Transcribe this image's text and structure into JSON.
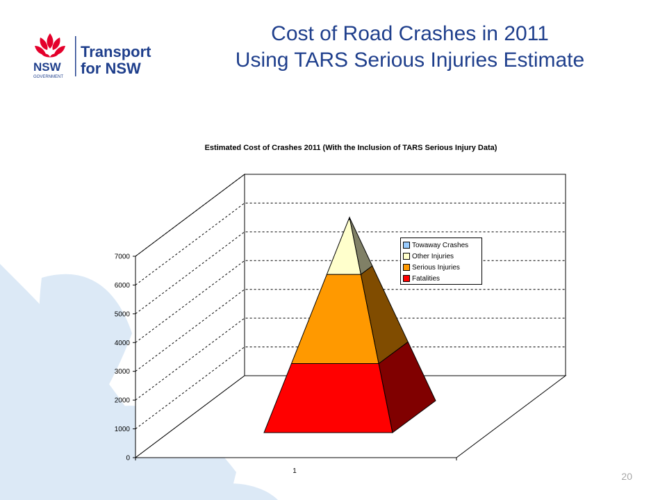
{
  "slide": {
    "title_line1": "Cost of Road Crashes in 2011",
    "title_line2": "Using TARS Serious Injuries Estimate",
    "page_number": "20"
  },
  "logo": {
    "org": "NSW",
    "org_sub": "GOVERNMENT",
    "agency_line1": "Transport",
    "agency_line2": "for NSW",
    "accent": "#e4002b",
    "brand": "#1f3f8c"
  },
  "chart_data": {
    "type": "pyramid",
    "title": "Estimated Cost of Crashes 2011 (With the Inclusion of TARS Serious Injury Data)",
    "categories": [
      "1"
    ],
    "ylim": [
      0,
      7000
    ],
    "yticks": [
      0,
      1000,
      2000,
      3000,
      4000,
      5000,
      6000,
      7000
    ],
    "grid": true,
    "legend_position": "inside-top-right",
    "series": [
      {
        "name": "Fatalities",
        "values": [
          2400
        ],
        "color": "#ff0000",
        "side_color": "#800000"
      },
      {
        "name": "Serious Injuries",
        "values": [
          3100
        ],
        "color": "#ff9900",
        "side_color": "#804c00"
      },
      {
        "name": "Other Injuries",
        "values": [
          1900
        ],
        "color": "#ffffcc",
        "side_color": "#808066"
      },
      {
        "name": "Towaway Crashes",
        "values": [
          80
        ],
        "color": "#99ccff",
        "side_color": "#4d6680"
      }
    ],
    "legend_order": [
      "Towaway Crashes",
      "Other Injuries",
      "Serious Injuries",
      "Fatalities"
    ]
  }
}
